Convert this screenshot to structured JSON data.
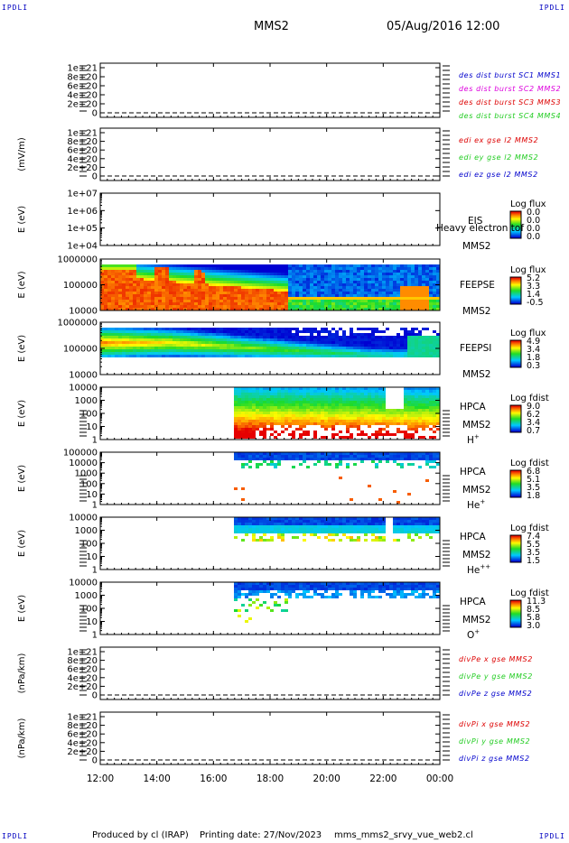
{
  "corners": {
    "tl": "IPDLI",
    "tr": "IPDLI",
    "bl": "IPDLI",
    "br": "IPDLI"
  },
  "header": {
    "spacecraft": "MMS2",
    "datetime": "05/Aug/2016 12:00"
  },
  "footer": {
    "produced_by": "Produced by cl (IRAP)",
    "printing_date": "Printing date: 27/Nov/2023",
    "script": "mms_mms2_srvy_vue_web2.cl"
  },
  "colors": {
    "red": "#dd0000",
    "magenta": "#dd00dd",
    "green": "#22cc22",
    "blue": "#0000cc"
  },
  "chart_data": [
    {
      "type": "line",
      "ylabel": "",
      "yticks": [
        "1e+21",
        "8e+20",
        "6e+20",
        "4e+20",
        "2e+20",
        "0"
      ],
      "legend": [
        {
          "text": "des dist burst SC1 MMS1",
          "color": "#0000cc"
        },
        {
          "text": "des dist burst SC2 MMS2",
          "color": "#dd00dd"
        },
        {
          "text": "des dist burst SC3 MMS3",
          "color": "#dd0000"
        },
        {
          "text": "des dist burst SC4 MMS4",
          "color": "#22cc22"
        }
      ],
      "series": []
    },
    {
      "type": "line",
      "ylabel": "(mV/m)",
      "yticks": [
        "1e+21",
        "8e+20",
        "6e+20",
        "4e+20",
        "2e+20",
        "0"
      ],
      "legend": [
        {
          "text": "edi ex gse l2 MMS2",
          "color": "#dd0000"
        },
        {
          "text": "edi ey gse l2 MMS2",
          "color": "#22cc22"
        },
        {
          "text": "edi ez gse l2 MMS2",
          "color": "#0000cc"
        }
      ],
      "series": []
    },
    {
      "type": "heatmap",
      "ylabel": "E (eV)",
      "yticks": [
        "1e+07",
        "1e+06",
        "1e+05",
        "1e+04"
      ],
      "log_y": true,
      "right_labels": [
        "EIS",
        "MMS2"
      ],
      "overlay_text": "Heavy electron tof",
      "colorbar": {
        "title": "Log flux",
        "ticks": [
          "0.0",
          "0.0",
          "0.0",
          "0.0"
        ]
      }
    },
    {
      "type": "heatmap",
      "ylabel": "E (eV)",
      "yticks": [
        "1000000",
        "100000",
        "10000"
      ],
      "log_y": true,
      "right_labels": [
        "FEEPSE",
        "MMS2"
      ],
      "colorbar": {
        "title": "Log flux",
        "ticks": [
          "5.2",
          "3.3",
          "1.4",
          "-0.5"
        ]
      }
    },
    {
      "type": "heatmap",
      "ylabel": "E (eV)",
      "yticks": [
        "1000000",
        "100000",
        "10000"
      ],
      "log_y": true,
      "right_labels": [
        "FEEPSI",
        "MMS2"
      ],
      "colorbar": {
        "title": "Log flux",
        "ticks": [
          "4.9",
          "3.4",
          "1.8",
          "0.3"
        ]
      }
    },
    {
      "type": "heatmap",
      "ylabel": "E (eV)",
      "yticks": [
        "10000",
        "1000",
        "100",
        "10",
        "1"
      ],
      "log_y": true,
      "right_labels": [
        "HPCA",
        "MMS2"
      ],
      "species": "H",
      "species_sup": "+",
      "colorbar": {
        "title": "Log fdist",
        "ticks": [
          "9.0",
          "6.2",
          "3.4",
          "0.7"
        ]
      }
    },
    {
      "type": "heatmap",
      "ylabel": "E (eV)",
      "yticks": [
        "100000",
        "10000",
        "1000",
        "100",
        "10",
        "1"
      ],
      "log_y": true,
      "right_labels": [
        "HPCA",
        "MMS2"
      ],
      "species": "He",
      "species_sup": "+",
      "colorbar": {
        "title": "Log fdist",
        "ticks": [
          "6.8",
          "5.1",
          "3.5",
          "1.8"
        ]
      }
    },
    {
      "type": "heatmap",
      "ylabel": "E (eV)",
      "yticks": [
        "10000",
        "1000",
        "100",
        "10",
        "1"
      ],
      "log_y": true,
      "right_labels": [
        "HPCA",
        "MMS2"
      ],
      "species": "He",
      "species_sup": "++",
      "colorbar": {
        "title": "Log fdist",
        "ticks": [
          "7.4",
          "5.5",
          "3.5",
          "1.5"
        ]
      }
    },
    {
      "type": "heatmap",
      "ylabel": "E (eV)",
      "yticks": [
        "10000",
        "1000",
        "100",
        "10",
        "1"
      ],
      "log_y": true,
      "right_labels": [
        "HPCA",
        "MMS2"
      ],
      "species": "O",
      "species_sup": "+",
      "colorbar": {
        "title": "Log fdist",
        "ticks": [
          "11.3",
          "8.5",
          "5.8",
          "3.0"
        ]
      }
    },
    {
      "type": "line",
      "ylabel": "(nPa/km)",
      "yticks": [
        "1e+21",
        "8e+20",
        "6e+20",
        "4e+20",
        "2e+20",
        "0"
      ],
      "legend": [
        {
          "text": "divPe x gse MMS2",
          "color": "#dd0000"
        },
        {
          "text": "divPe y gse MMS2",
          "color": "#22cc22"
        },
        {
          "text": "divPe z gse MMS2",
          "color": "#0000cc"
        }
      ],
      "series": []
    },
    {
      "type": "line",
      "ylabel": "(nPa/km)",
      "yticks": [
        "1e+21",
        "8e+20",
        "6e+20",
        "4e+20",
        "2e+20",
        "0"
      ],
      "legend": [
        {
          "text": "divPi x gse MMS2",
          "color": "#dd0000"
        },
        {
          "text": "divPi y gse MMS2",
          "color": "#22cc22"
        },
        {
          "text": "divPi z gse MMS2",
          "color": "#0000cc"
        }
      ],
      "series": []
    }
  ],
  "xaxis": {
    "ticks": [
      "12:00",
      "14:00",
      "16:00",
      "18:00",
      "20:00",
      "22:00",
      "00:00"
    ],
    "x": [
      12,
      14,
      16,
      18,
      20,
      22,
      24
    ],
    "xlim": [
      12,
      24
    ]
  }
}
